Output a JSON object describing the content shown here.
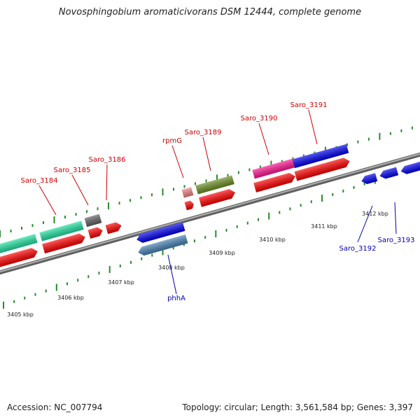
{
  "title": "Novosphingobium aromaticivorans DSM 12444, complete genome",
  "footer": {
    "accession": "Accession: NC_007794",
    "summary": "Topology: circular; Length: 3,561,584 bp; Genes: 3,397"
  },
  "colors": {
    "label_forward": "#cc0000",
    "label_reverse": "#0000aa",
    "backbone": "#808080",
    "tick": "#2a8a2a",
    "cds": "#ff0000",
    "rna": "#f08080"
  },
  "kbp_labels": [
    "3405 kbp",
    "3406 kbp",
    "3407 kbp",
    "3408 kbp",
    "3409 kbp",
    "3410 kbp",
    "3411 kbp",
    "3412 kbp"
  ],
  "genes": [
    {
      "name": "Saro_3184",
      "strand": "forward"
    },
    {
      "name": "Saro_3185",
      "strand": "forward"
    },
    {
      "name": "Saro_3186",
      "strand": "forward"
    },
    {
      "name": "rpmG",
      "strand": "forward"
    },
    {
      "name": "Saro_3189",
      "strand": "forward"
    },
    {
      "name": "Saro_3190",
      "strand": "forward"
    },
    {
      "name": "Saro_3191",
      "strand": "forward"
    },
    {
      "name": "phhA",
      "strand": "reverse"
    },
    {
      "name": "Saro_3192",
      "strand": "reverse"
    },
    {
      "name": "Saro_3193",
      "strand": "reverse"
    }
  ]
}
